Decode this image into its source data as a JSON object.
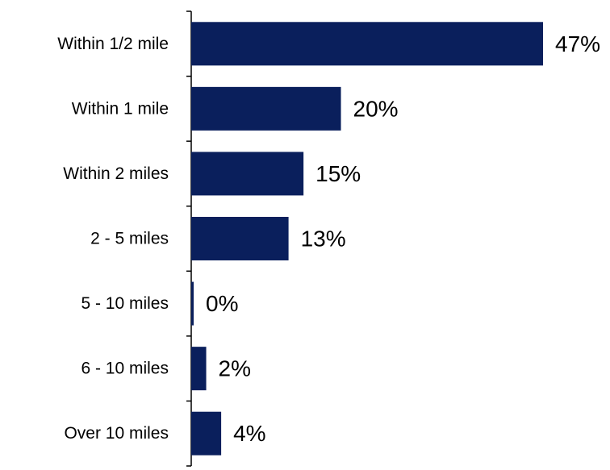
{
  "chart_data": {
    "type": "bar",
    "orientation": "horizontal",
    "categories": [
      "Within 1/2 mile",
      "Within 1 mile",
      "Within 2 miles",
      "2 - 5 miles",
      "5 - 10 miles",
      "6 - 10 miles",
      "Over 10 miles"
    ],
    "values": [
      47,
      20,
      15,
      13,
      0,
      2,
      4
    ],
    "value_labels": [
      "47%",
      "20%",
      "15%",
      "13%",
      "0%",
      "2%",
      "4%"
    ],
    "unit": "%",
    "title": "",
    "xlabel": "",
    "ylabel": "",
    "xlim": [
      0,
      50
    ],
    "grid": false,
    "legend": "none",
    "bar_color": "#0a1f5c"
  }
}
